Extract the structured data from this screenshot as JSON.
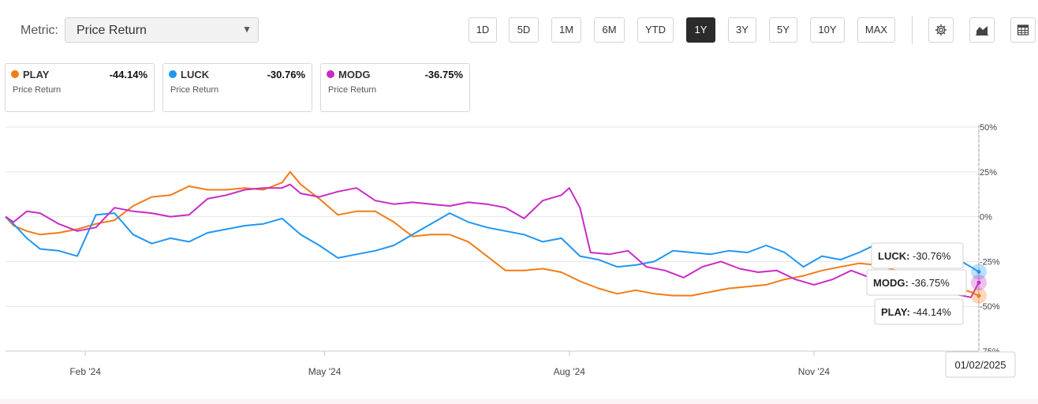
{
  "toolbar": {
    "metric_label": "Metric:",
    "metric_value": "Price Return",
    "ranges": [
      "1D",
      "5D",
      "1M",
      "6M",
      "YTD",
      "1Y",
      "3Y",
      "5Y",
      "10Y",
      "MAX"
    ],
    "active_range": "1Y",
    "icons": [
      "gear-icon",
      "area-chart-icon",
      "table-icon"
    ]
  },
  "legend": [
    {
      "ticker": "PLAY",
      "value": "-44.14%",
      "metric": "Price Return",
      "color": "#f47b16"
    },
    {
      "ticker": "LUCK",
      "value": "-30.76%",
      "metric": "Price Return",
      "color": "#2196f3"
    },
    {
      "ticker": "MODG",
      "value": "-36.75%",
      "metric": "Price Return",
      "color": "#c92bc5"
    }
  ],
  "chart_data": {
    "type": "line",
    "title": "",
    "xlabel": "",
    "ylabel": "",
    "x_ticks": [
      "Feb '24",
      "May '24",
      "Aug '24",
      "Nov '24"
    ],
    "x_tick_dates": [
      "2024-02-01",
      "2024-05-01",
      "2024-08-01",
      "2024-11-01"
    ],
    "x_range": [
      "2024-01-02",
      "2025-01-02"
    ],
    "ylim": [
      -75,
      50
    ],
    "y_ticks": [
      50,
      25,
      0,
      -25,
      -50,
      -75
    ],
    "y_tick_labels": [
      "50%",
      "25%",
      "0%",
      "-25%",
      "-50%",
      "-75%"
    ],
    "grid": "horizontal",
    "crosshair_date_label": "01/02/2025",
    "series": [
      {
        "name": "PLAY",
        "color": "#f47b16",
        "points": [
          [
            "2024-01-02",
            0
          ],
          [
            "2024-01-05",
            -5
          ],
          [
            "2024-01-10",
            -8
          ],
          [
            "2024-01-15",
            -10
          ],
          [
            "2024-01-22",
            -9
          ],
          [
            "2024-01-29",
            -7
          ],
          [
            "2024-02-05",
            -4
          ],
          [
            "2024-02-12",
            -2
          ],
          [
            "2024-02-19",
            6
          ],
          [
            "2024-02-26",
            11
          ],
          [
            "2024-03-04",
            12
          ],
          [
            "2024-03-11",
            17
          ],
          [
            "2024-03-18",
            15
          ],
          [
            "2024-03-25",
            15
          ],
          [
            "2024-04-01",
            16
          ],
          [
            "2024-04-08",
            15
          ],
          [
            "2024-04-15",
            19
          ],
          [
            "2024-04-18",
            25
          ],
          [
            "2024-04-22",
            18
          ],
          [
            "2024-04-29",
            10
          ],
          [
            "2024-05-06",
            1
          ],
          [
            "2024-05-13",
            3
          ],
          [
            "2024-05-20",
            3
          ],
          [
            "2024-05-27",
            -3
          ],
          [
            "2024-06-03",
            -11
          ],
          [
            "2024-06-10",
            -10
          ],
          [
            "2024-06-17",
            -10
          ],
          [
            "2024-06-24",
            -14
          ],
          [
            "2024-07-01",
            -22
          ],
          [
            "2024-07-08",
            -30
          ],
          [
            "2024-07-15",
            -30
          ],
          [
            "2024-07-22",
            -29
          ],
          [
            "2024-07-29",
            -31
          ],
          [
            "2024-08-05",
            -36
          ],
          [
            "2024-08-12",
            -40
          ],
          [
            "2024-08-19",
            -43
          ],
          [
            "2024-08-26",
            -41
          ],
          [
            "2024-09-02",
            -43
          ],
          [
            "2024-09-09",
            -44
          ],
          [
            "2024-09-16",
            -44
          ],
          [
            "2024-09-23",
            -42
          ],
          [
            "2024-09-30",
            -40
          ],
          [
            "2024-10-07",
            -39
          ],
          [
            "2024-10-14",
            -38
          ],
          [
            "2024-10-21",
            -35
          ],
          [
            "2024-10-28",
            -33
          ],
          [
            "2024-11-04",
            -30
          ],
          [
            "2024-11-11",
            -28
          ],
          [
            "2024-11-18",
            -26
          ],
          [
            "2024-11-25",
            -27
          ],
          [
            "2024-12-02",
            -30
          ],
          [
            "2024-12-09",
            -33
          ],
          [
            "2024-12-16",
            -36
          ],
          [
            "2024-12-23",
            -39
          ],
          [
            "2024-12-30",
            -42
          ],
          [
            "2025-01-02",
            -44.14
          ]
        ]
      },
      {
        "name": "LUCK",
        "color": "#2196f3",
        "points": [
          [
            "2024-01-02",
            0
          ],
          [
            "2024-01-05",
            -4
          ],
          [
            "2024-01-10",
            -12
          ],
          [
            "2024-01-15",
            -18
          ],
          [
            "2024-01-22",
            -19
          ],
          [
            "2024-01-29",
            -22
          ],
          [
            "2024-02-05",
            1
          ],
          [
            "2024-02-12",
            2
          ],
          [
            "2024-02-19",
            -10
          ],
          [
            "2024-02-26",
            -15
          ],
          [
            "2024-03-04",
            -12
          ],
          [
            "2024-03-11",
            -14
          ],
          [
            "2024-03-18",
            -9
          ],
          [
            "2024-03-25",
            -7
          ],
          [
            "2024-04-01",
            -5
          ],
          [
            "2024-04-08",
            -4
          ],
          [
            "2024-04-15",
            -1
          ],
          [
            "2024-04-22",
            -10
          ],
          [
            "2024-04-29",
            -16
          ],
          [
            "2024-05-06",
            -23
          ],
          [
            "2024-05-13",
            -21
          ],
          [
            "2024-05-20",
            -19
          ],
          [
            "2024-05-27",
            -16
          ],
          [
            "2024-06-03",
            -10
          ],
          [
            "2024-06-10",
            -4
          ],
          [
            "2024-06-17",
            2
          ],
          [
            "2024-06-24",
            -3
          ],
          [
            "2024-07-01",
            -6
          ],
          [
            "2024-07-08",
            -8
          ],
          [
            "2024-07-15",
            -10
          ],
          [
            "2024-07-22",
            -14
          ],
          [
            "2024-07-29",
            -12
          ],
          [
            "2024-08-05",
            -22
          ],
          [
            "2024-08-12",
            -24
          ],
          [
            "2024-08-19",
            -28
          ],
          [
            "2024-08-26",
            -27
          ],
          [
            "2024-09-02",
            -25
          ],
          [
            "2024-09-09",
            -19
          ],
          [
            "2024-09-16",
            -20
          ],
          [
            "2024-09-23",
            -21
          ],
          [
            "2024-09-30",
            -19
          ],
          [
            "2024-10-07",
            -20
          ],
          [
            "2024-10-14",
            -16
          ],
          [
            "2024-10-21",
            -20
          ],
          [
            "2024-10-28",
            -28
          ],
          [
            "2024-11-04",
            -22
          ],
          [
            "2024-11-11",
            -24
          ],
          [
            "2024-11-18",
            -20
          ],
          [
            "2024-11-25",
            -15
          ],
          [
            "2024-12-02",
            -20
          ],
          [
            "2024-12-09",
            -22
          ],
          [
            "2024-12-16",
            -20
          ],
          [
            "2024-12-23",
            -22
          ],
          [
            "2024-12-30",
            -28
          ],
          [
            "2025-01-02",
            -30.76
          ]
        ]
      },
      {
        "name": "MODG",
        "color": "#c92bc5",
        "points": [
          [
            "2024-01-02",
            0
          ],
          [
            "2024-01-05",
            -3
          ],
          [
            "2024-01-10",
            3
          ],
          [
            "2024-01-15",
            2
          ],
          [
            "2024-01-22",
            -4
          ],
          [
            "2024-01-29",
            -8
          ],
          [
            "2024-02-05",
            -6
          ],
          [
            "2024-02-12",
            5
          ],
          [
            "2024-02-19",
            3
          ],
          [
            "2024-02-26",
            2
          ],
          [
            "2024-03-04",
            0
          ],
          [
            "2024-03-11",
            1
          ],
          [
            "2024-03-18",
            10
          ],
          [
            "2024-03-25",
            12
          ],
          [
            "2024-04-01",
            15
          ],
          [
            "2024-04-08",
            16
          ],
          [
            "2024-04-15",
            16
          ],
          [
            "2024-04-18",
            18
          ],
          [
            "2024-04-22",
            13
          ],
          [
            "2024-04-29",
            11
          ],
          [
            "2024-05-06",
            14
          ],
          [
            "2024-05-13",
            16
          ],
          [
            "2024-05-20",
            9
          ],
          [
            "2024-05-27",
            7
          ],
          [
            "2024-06-03",
            8
          ],
          [
            "2024-06-10",
            7
          ],
          [
            "2024-06-17",
            6
          ],
          [
            "2024-06-24",
            8
          ],
          [
            "2024-07-01",
            7
          ],
          [
            "2024-07-08",
            5
          ],
          [
            "2024-07-15",
            -1
          ],
          [
            "2024-07-22",
            9
          ],
          [
            "2024-07-29",
            12
          ],
          [
            "2024-08-01",
            16
          ],
          [
            "2024-08-05",
            5
          ],
          [
            "2024-08-09",
            -20
          ],
          [
            "2024-08-16",
            -21
          ],
          [
            "2024-08-23",
            -19
          ],
          [
            "2024-08-30",
            -28
          ],
          [
            "2024-09-06",
            -30
          ],
          [
            "2024-09-13",
            -34
          ],
          [
            "2024-09-20",
            -28
          ],
          [
            "2024-09-27",
            -25
          ],
          [
            "2024-10-04",
            -29
          ],
          [
            "2024-10-11",
            -31
          ],
          [
            "2024-10-18",
            -30
          ],
          [
            "2024-10-25",
            -35
          ],
          [
            "2024-11-01",
            -38
          ],
          [
            "2024-11-08",
            -35
          ],
          [
            "2024-11-15",
            -30
          ],
          [
            "2024-11-22",
            -34
          ],
          [
            "2024-11-29",
            -38
          ],
          [
            "2024-12-06",
            -40
          ],
          [
            "2024-12-13",
            -38
          ],
          [
            "2024-12-20",
            -42
          ],
          [
            "2024-12-30",
            -45
          ],
          [
            "2025-01-02",
            -36.75
          ]
        ]
      }
    ],
    "tooltips": [
      {
        "ticker": "LUCK",
        "value": "-30.76%"
      },
      {
        "ticker": "MODG",
        "value": "-36.75%"
      },
      {
        "ticker": "PLAY",
        "value": "-44.14%"
      }
    ]
  }
}
